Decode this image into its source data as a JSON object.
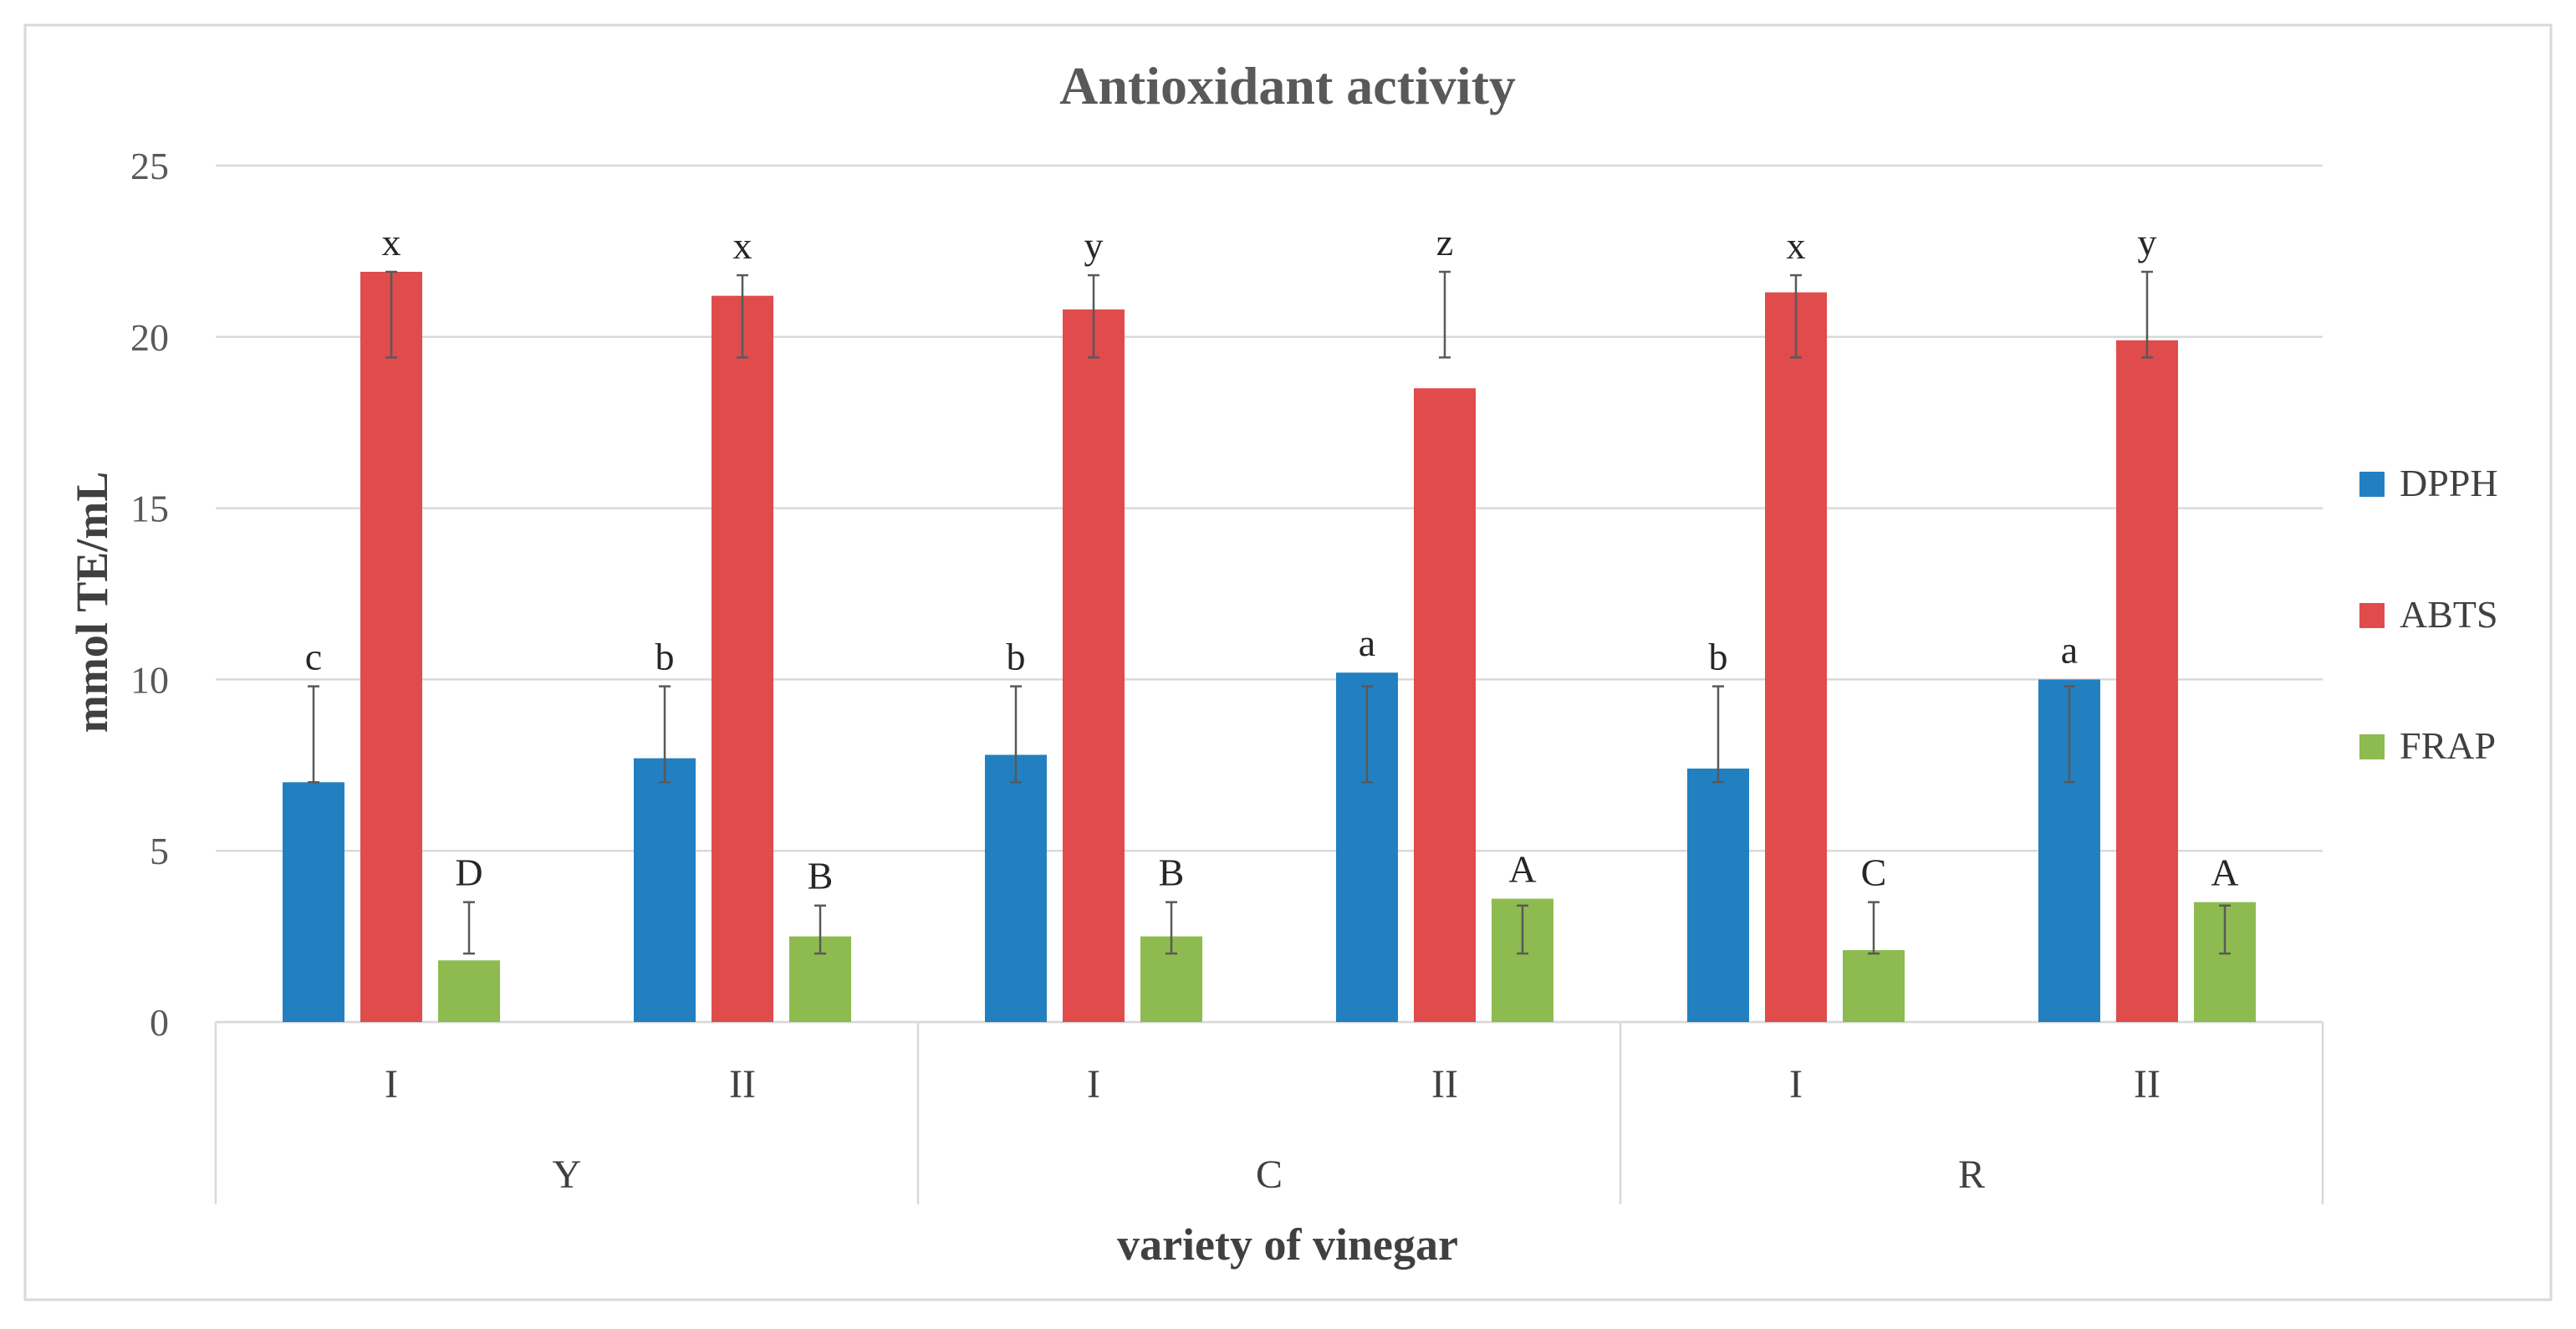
{
  "chart_data": {
    "type": "bar",
    "title": "Antioxidant activity",
    "xlabel": "variety of vinegar",
    "ylabel": "mmol TE/mL",
    "ylim": [
      0,
      25
    ],
    "yticks": [
      0,
      5,
      10,
      15,
      20,
      25
    ],
    "grid": true,
    "legend_position": "right",
    "groups": [
      {
        "label": "Y",
        "categories": [
          "I",
          "II"
        ]
      },
      {
        "label": "C",
        "categories": [
          "I",
          "II"
        ]
      },
      {
        "label": "R",
        "categories": [
          "I",
          "II"
        ]
      }
    ],
    "categories": [
      "I",
      "II",
      "I",
      "II",
      "I",
      "II"
    ],
    "series": [
      {
        "name": "DPPH",
        "color": "#2280C1",
        "values": [
          7.0,
          7.7,
          7.8,
          10.2,
          7.4,
          10.0
        ],
        "err_low": [
          7.0,
          7.0,
          7.0,
          7.0,
          7.0,
          7.0
        ],
        "err_high": [
          9.8,
          9.8,
          9.8,
          9.8,
          9.8,
          9.8
        ],
        "labels": [
          "c",
          "b",
          "b",
          "a",
          "b",
          "a"
        ]
      },
      {
        "name": "ABTS",
        "color": "#E04B4C",
        "values": [
          21.9,
          21.2,
          20.8,
          18.5,
          21.3,
          19.9
        ],
        "err_low": [
          19.4,
          19.4,
          19.4,
          19.4,
          19.4,
          19.4
        ],
        "err_high": [
          21.9,
          21.8,
          21.8,
          21.9,
          21.8,
          21.9
        ],
        "labels": [
          "x",
          "x",
          "y",
          "z",
          "x",
          "y"
        ]
      },
      {
        "name": "FRAP",
        "color": "#8DBB4F",
        "values": [
          1.8,
          2.5,
          2.5,
          3.6,
          2.1,
          3.5
        ],
        "err_low": [
          2.0,
          2.0,
          2.0,
          2.0,
          2.0,
          2.0
        ],
        "err_high": [
          3.5,
          3.4,
          3.5,
          3.4,
          3.5,
          3.4
        ],
        "labels": [
          "D",
          "B",
          "B",
          "A",
          "C",
          "A"
        ]
      }
    ]
  }
}
